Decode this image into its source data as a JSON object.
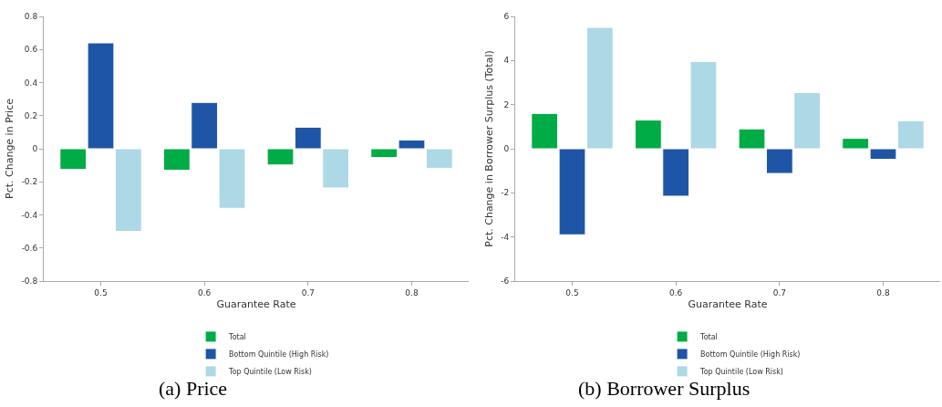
{
  "chart_data": [
    {
      "type": "bar",
      "title": "(a) Price",
      "xlabel": "Guarantee Rate",
      "ylabel": "Pct. Change in Price",
      "categories": [
        "0.5",
        "0.6",
        "0.7",
        "0.8"
      ],
      "series": [
        {
          "name": "Total",
          "color": "#00ac45",
          "values": [
            -0.125,
            -0.13,
            -0.098,
            -0.053
          ]
        },
        {
          "name": "Bottom Quintile (High Risk)",
          "color": "#1f55a6",
          "values": [
            0.64,
            0.28,
            0.13,
            0.053
          ]
        },
        {
          "name": "Top Quintile (Low Risk)",
          "color": "#add8e6",
          "values": [
            -0.5,
            -0.36,
            -0.237,
            -0.118
          ]
        }
      ],
      "ylim": [
        -0.8,
        0.8
      ],
      "yticks": [
        -0.8,
        -0.6,
        -0.4,
        -0.2,
        0,
        0.2,
        0.4,
        0.6,
        0.8
      ],
      "grid": false,
      "legend": "bottom"
    },
    {
      "type": "bar",
      "title": "(b) Borrower Surplus",
      "xlabel": "Guarantee Rate",
      "ylabel": "Pct. Change in Borrower Surplus (Total)",
      "categories": [
        "0.5",
        "0.6",
        "0.7",
        "0.8"
      ],
      "series": [
        {
          "name": "Total",
          "color": "#00ac45",
          "values": [
            1.6,
            1.3,
            0.9,
            0.47
          ]
        },
        {
          "name": "Bottom Quintile (High Risk)",
          "color": "#1f55a6",
          "values": [
            -3.9,
            -2.15,
            -1.12,
            -0.48
          ]
        },
        {
          "name": "Top Quintile (Low Risk)",
          "color": "#add8e6",
          "values": [
            5.5,
            3.95,
            2.55,
            1.27
          ]
        }
      ],
      "ylim": [
        -6,
        6
      ],
      "yticks": [
        -6,
        -4,
        -2,
        0,
        2,
        4,
        6
      ],
      "grid": false,
      "legend": "bottom"
    }
  ]
}
